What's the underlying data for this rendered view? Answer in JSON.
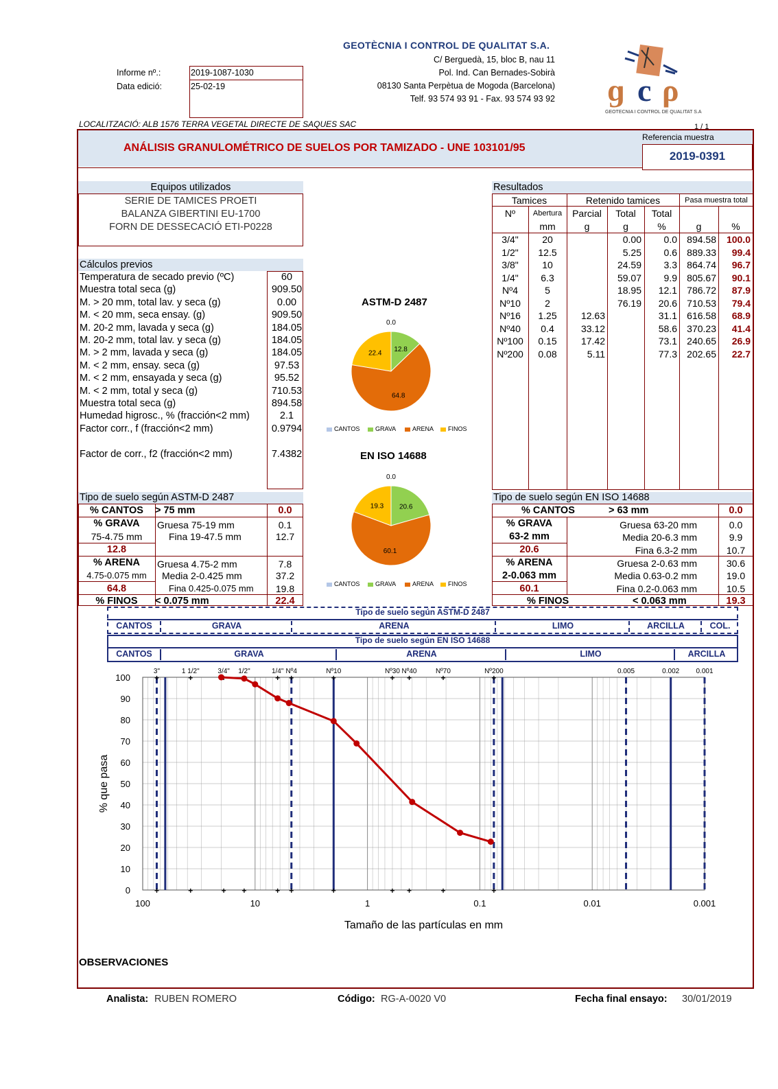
{
  "company": {
    "name": "GEOTÈCNIA I CONTROL DE QUALITAT S.A.",
    "address1": "C/ Berguedà, 15, bloc B, nau 11",
    "address2": "Pol. Ind. Can Bernades-Sobirà",
    "address3": "08130 Santa Perpètua de Mogoda (Barcelona)",
    "phone": "Telf. 93 574 93 91 - Fax. 93 574 93 92",
    "logo_caption": "GEOTECNIA I CONTROL DE QUALITAT S.A"
  },
  "report": {
    "informe_label": "Informe nº.:",
    "informe_value": "2019-1087-1030",
    "data_label": "Data edició:",
    "data_value": "25-02-19",
    "localitzacio": "LOCALITZACIÓ: ALB 1576 TERRA VEGETAL DIRECTE DE SAQUES SAC",
    "page": "1 / 1",
    "ref_label": "Referencia muestra",
    "ref_value": "2019-0391",
    "title": "ANÁLISIS GRANULOMÉTRICO DE SUELOS POR TAMIZADO - UNE 103101/95"
  },
  "equipos": {
    "title": "Equipos utilizados",
    "items": [
      "SERIE DE TAMICES PROETI",
      "BALANZA GIBERTINI EU-1700",
      "FORN DE DESSECACIÓ ETI-P0228"
    ]
  },
  "calculos": {
    "title": "Cálculos previos",
    "rows": [
      {
        "label": "Temperatura de secado previo (ºC)",
        "value": "60"
      },
      {
        "label": "Muestra total seca (g)",
        "value": "909.50"
      },
      {
        "label": "M. > 20 mm, total lav. y seca (g)",
        "value": "0.00"
      },
      {
        "label": "M. < 20 mm, seca ensay. (g)",
        "value": "909.50"
      },
      {
        "label": "M. 20-2 mm, lavada y seca (g)",
        "value": "184.05"
      },
      {
        "label": "M. 20-2 mm, total lav. y seca (g)",
        "value": "184.05"
      },
      {
        "label": "M. > 2 mm, lavada y seca (g)",
        "value": "184.05"
      },
      {
        "label": "M. < 2 mm, ensay. seca (g)",
        "value": "97.53"
      },
      {
        "label": "M. < 2 mm, ensayada y seca (g)",
        "value": "95.52"
      },
      {
        "label": "M. < 2 mm, total y seca (g)",
        "value": "710.53"
      },
      {
        "label": "Muestra total seca (g)",
        "value": "894.58"
      },
      {
        "label": "Humedad higrosc., % (fracción<2 mm)",
        "value": "2.1"
      },
      {
        "label": "Factor corr., f (fracción<2 mm)",
        "value": "0.9794"
      }
    ],
    "f2_label": "Factor de corr., f2 (fracción<2 mm)",
    "f2_value": "7.4382"
  },
  "resultados": {
    "title": "Resultados",
    "h_tamices": "Tamices",
    "h_retenido": "Retenido tamices",
    "h_pasa": "Pasa muestra total",
    "h_n": "Nº",
    "h_abertura": "Abertura",
    "h_parcial": "Parcial",
    "h_total": "Total",
    "h_totalp": "Total",
    "u_mm": "mm",
    "u_g": "g",
    "u_g2": "g",
    "u_pct": "%",
    "u_g3": "g",
    "u_pct2": "%",
    "rows": [
      {
        "n": "3/4\"",
        "ab": "20",
        "par": "",
        "tot": "0.00",
        "totp": "0.0",
        "g": "894.58",
        "p": "100.0"
      },
      {
        "n": "1/2\"",
        "ab": "12.5",
        "par": "",
        "tot": "5.25",
        "totp": "0.6",
        "g": "889.33",
        "p": "99.4"
      },
      {
        "n": "3/8\"",
        "ab": "10",
        "par": "",
        "tot": "24.59",
        "totp": "3.3",
        "g": "864.74",
        "p": "96.7"
      },
      {
        "n": "1/4\"",
        "ab": "6.3",
        "par": "",
        "tot": "59.07",
        "totp": "9.9",
        "g": "805.67",
        "p": "90.1"
      },
      {
        "n": "Nº4",
        "ab": "5",
        "par": "",
        "tot": "18.95",
        "totp": "12.1",
        "g": "786.72",
        "p": "87.9"
      },
      {
        "n": "Nº10",
        "ab": "2",
        "par": "",
        "tot": "76.19",
        "totp": "20.6",
        "g": "710.53",
        "p": "79.4"
      },
      {
        "n": "Nº16",
        "ab": "1.25",
        "par": "12.63",
        "tot": "",
        "totp": "31.1",
        "g": "616.58",
        "p": "68.9"
      },
      {
        "n": "Nº40",
        "ab": "0.4",
        "par": "33.12",
        "tot": "",
        "totp": "58.6",
        "g": "370.23",
        "p": "41.4"
      },
      {
        "n": "Nº100",
        "ab": "0.15",
        "par": "17.42",
        "tot": "",
        "totp": "73.1",
        "g": "240.65",
        "p": "26.9"
      },
      {
        "n": "Nº200",
        "ab": "0.08",
        "par": "5.11",
        "tot": "",
        "totp": "77.3",
        "g": "202.65",
        "p": "22.7"
      }
    ]
  },
  "pie1": {
    "title": "ASTM-D 2487",
    "cantos": "0.0",
    "grava": "12.8",
    "arena": "64.8",
    "finos": "22.4"
  },
  "pie2": {
    "title": "EN ISO 14688",
    "cantos": "0.0",
    "grava": "20.6",
    "arena": "60.1",
    "finos": "19.3"
  },
  "pie_legend": [
    "CANTOS",
    "GRAVA",
    "ARENA",
    "FINOS"
  ],
  "pie_colors": {
    "cantos": "#b4c7e7",
    "grava": "#92d050",
    "arena": "#e36c09",
    "finos": "#ffc000"
  },
  "astm": {
    "title": "Tipo de suelo según ASTM-D 2487",
    "cantos_l": "% CANTOS",
    "cantos_r": "> 75 mm",
    "cantos_v": "0.0",
    "grava_l": "% GRAVA",
    "grava_sub": "75-4.75 mm",
    "grava_tot": "12.8",
    "grava_g": "Gruesa 75-19 mm",
    "grava_gv": "0.1",
    "grava_f": "Fina 19-47.5 mm",
    "grava_fv": "12.7",
    "arena_l": "% ARENA",
    "arena_sub": "4.75-0.075 mm",
    "arena_tot": "64.8",
    "arena_g": "Gruesa 4.75-2 mm",
    "arena_gv": "7.8",
    "arena_m": "Media 2-0.425 mm",
    "arena_mv": "37.2",
    "arena_f": "Fina 0.425-0.075 mm",
    "arena_fv": "19.8",
    "finos_l": "% FINOS",
    "finos_r": "< 0.075 mm",
    "finos_v": "22.4"
  },
  "iso": {
    "title": "Tipo de suelo según EN ISO 14688",
    "cantos_l": "% CANTOS",
    "cantos_r": "> 63 mm",
    "cantos_v": "0.0",
    "grava_l": "% GRAVA",
    "grava_sub": "63-2 mm",
    "grava_tot": "20.6",
    "grava_g": "Gruesa 63-20 mm",
    "grava_gv": "0.0",
    "grava_m": "Media 20-6.3 mm",
    "grava_mv": "9.9",
    "grava_f": "Fina 6.3-2 mm",
    "grava_fv": "10.7",
    "arena_l": "% ARENA",
    "arena_sub": "2-0.063 mm",
    "arena_tot": "60.1",
    "arena_g": "Gruesa 2-0.63 mm",
    "arena_gv": "30.6",
    "arena_m": "Media 0.63-0.2 mm",
    "arena_mv": "19.0",
    "arena_f": "Fina 0.2-0.063 mm",
    "arena_fv": "10.5",
    "finos_l": "% FINOS",
    "finos_r": "< 0.063 mm",
    "finos_v": "19.3"
  },
  "bands": {
    "astm_title": "Tipo de suelo según ASTM-D 2487",
    "astm": [
      "CANTOS",
      "GRAVA",
      "ARENA",
      "LIMO",
      "ARCILLA",
      "COL."
    ],
    "iso_title": "Tipo de suelo según EN ISO 14688",
    "iso": [
      "CANTOS",
      "GRAVA",
      "ARENA",
      "LIMO",
      "ARCILLA"
    ]
  },
  "chart_data": {
    "type": "line",
    "xscale": "log",
    "xlim": [
      100,
      0.001
    ],
    "ylim": [
      0,
      100
    ],
    "xlabel": "Tamaño de las partículas en mm",
    "ylabel": "% que pasa",
    "x_ticks": [
      "100",
      "10",
      "1",
      "0.1",
      "0.01",
      "0.001"
    ],
    "y_ticks": [
      "0",
      "10",
      "20",
      "30",
      "40",
      "50",
      "60",
      "70",
      "80",
      "90",
      "100"
    ],
    "sieve_labels": [
      {
        "label": "3\"",
        "x": 75
      },
      {
        "label": "1 1/2\"",
        "x": 37.5
      },
      {
        "label": "3/4\"",
        "x": 19
      },
      {
        "label": "1/2\"",
        "x": 12.5
      },
      {
        "label": "1/4\"",
        "x": 6.3
      },
      {
        "label": "Nº4",
        "x": 4.75
      },
      {
        "label": "Nº10",
        "x": 2
      },
      {
        "label": "Nº30",
        "x": 0.6
      },
      {
        "label": "Nº40",
        "x": 0.425
      },
      {
        "label": "Nº70",
        "x": 0.212
      },
      {
        "label": "Nº200",
        "x": 0.075
      },
      {
        "label": "0.005",
        "x": 0.005
      },
      {
        "label": "0.002",
        "x": 0.002
      },
      {
        "label": "0.001",
        "x": 0.001
      }
    ],
    "series": [
      {
        "x": [
          20,
          12.5,
          10,
          6.3,
          5,
          2,
          1.25,
          0.4,
          0.15,
          0.08
        ],
        "y": [
          100.0,
          99.4,
          96.7,
          90.1,
          87.9,
          79.4,
          68.9,
          41.4,
          26.9,
          22.7
        ]
      }
    ],
    "line_color": "#c00000",
    "dashed_lines": [
      75,
      4.75,
      0.075,
      0.005,
      0.001
    ],
    "solid_lines": [
      63,
      2,
      0.063,
      0.002
    ]
  },
  "observaciones": "OBSERVACIONES",
  "footer": {
    "analista_l": "Analista:",
    "analista_v": "RUBEN ROMERO",
    "codigo_l": "Código:",
    "codigo_v": "RG-A-0020 V0",
    "fecha_l": "Fecha final ensayo:",
    "fecha_v": "30/01/2019"
  }
}
